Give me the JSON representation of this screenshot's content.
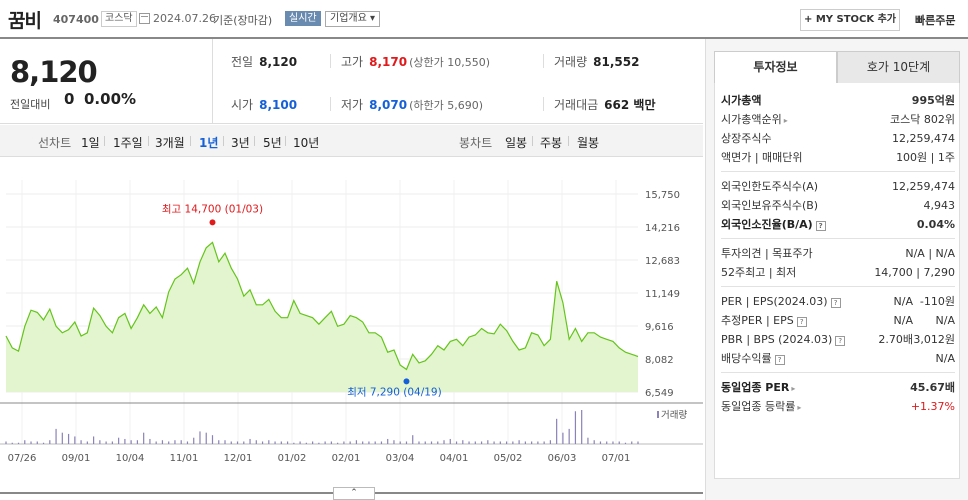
{
  "header": {
    "name": "꿈비",
    "code": "407400",
    "market": "코스닥",
    "date": "2024.07.26",
    "base": "기준(장마감)",
    "realtime": "실시간",
    "company_info": "기업개요 ▾",
    "mystock": "+ MY STOCK 추가",
    "quick_order": "빠른주문"
  },
  "summary": {
    "price": "8,120",
    "change_label": "전일대비",
    "change_value": "0",
    "change_pct": "0.00%",
    "prev_label": "전일",
    "prev": "8,120",
    "high_label": "고가",
    "high": "8,170",
    "upper_limit": "(상한가 10,550)",
    "volume_label": "거래량",
    "volume": "81,552",
    "open_label": "시가",
    "open": "8,100",
    "low_label": "저가",
    "low": "8,070",
    "lower_limit": "(하한가 5,690)",
    "amount_label": "거래대금",
    "amount": "662 백만"
  },
  "tabs": {
    "line_label": "선차트",
    "line": [
      "1일",
      "1주일",
      "3개월",
      "1년",
      "3년",
      "5년",
      "10년"
    ],
    "active": "1년",
    "candle_label": "봉차트",
    "candle": [
      "일봉",
      "주봉",
      "월봉"
    ]
  },
  "chart_data": {
    "type": "area",
    "x_ticks": [
      "07/26",
      "09/01",
      "10/04",
      "11/01",
      "12/01",
      "01/02",
      "02/01",
      "03/04",
      "04/01",
      "05/02",
      "06/03",
      "07/01"
    ],
    "y_ticks": [
      15750,
      14216,
      12683,
      11149,
      9616,
      8082,
      6549
    ],
    "ylim": [
      6549,
      15750
    ],
    "values": [
      9150,
      8600,
      8450,
      9600,
      10350,
      10250,
      9900,
      10400,
      9600,
      9300,
      9450,
      9800,
      9150,
      9300,
      10450,
      10100,
      9600,
      9300,
      10000,
      10200,
      9500,
      10000,
      10600,
      10200,
      10500,
      10000,
      11200,
      11800,
      12000,
      12300,
      11600,
      12600,
      13250,
      13500,
      12600,
      13000,
      12300,
      11800,
      11000,
      11300,
      10600,
      10600,
      10850,
      10300,
      10000,
      10000,
      10800,
      10200,
      10100,
      10000,
      9700,
      10000,
      10300,
      9600,
      9700,
      10100,
      10000,
      9800,
      9300,
      9300,
      9100,
      8400,
      8500,
      7800,
      7600,
      8300,
      7900,
      8000,
      8300,
      8700,
      8500,
      8900,
      9000,
      8700,
      9100,
      9200,
      9500,
      9300,
      9250,
      9700,
      9400,
      8900,
      8500,
      8600,
      9300,
      9200,
      8700,
      9000,
      11700,
      10700,
      9000,
      9500,
      8900,
      9300,
      9300,
      9100,
      9000,
      8900,
      8600,
      8400,
      8300,
      8200
    ],
    "max_label": "최고 14,700 (01/03)",
    "min_label": "최저 7,290 (04/19)",
    "volume_label": "거래량",
    "volume": [
      2,
      1,
      1,
      3,
      2,
      2,
      1,
      3,
      12,
      9,
      8,
      6,
      3,
      2,
      6,
      3,
      2,
      2,
      5,
      4,
      3,
      3,
      9,
      4,
      2,
      3,
      2,
      3,
      3,
      2,
      5,
      10,
      9,
      7,
      3,
      3,
      2,
      2,
      2,
      4,
      3,
      2,
      3,
      2,
      2,
      2,
      1,
      2,
      1,
      2,
      1,
      2,
      2,
      1,
      2,
      2,
      3,
      2,
      2,
      2,
      2,
      4,
      3,
      2,
      2,
      7,
      2,
      2,
      2,
      2,
      3,
      4,
      2,
      3,
      2,
      2,
      2,
      3,
      2,
      2,
      2,
      2,
      3,
      2,
      2,
      2,
      2,
      3,
      20,
      9,
      12,
      26,
      27,
      5,
      3,
      2,
      2,
      2,
      2,
      1,
      2,
      2
    ],
    "line_color": "#64c41a",
    "fill_color": "#e3f5cf",
    "max_color": "#e0191b",
    "min_color": "#1560d8"
  },
  "collapse": "⌃",
  "panel": {
    "tabs": [
      "투자정보",
      "호가 10단계"
    ],
    "rows1": [
      {
        "k": "시가총액",
        "v": "995억원",
        "bold": true
      },
      {
        "k": "시가총액순위",
        "v": "코스닥 802위",
        "arrow": true
      },
      {
        "k": "상장주식수",
        "v": "12,259,474"
      },
      {
        "k": "액면가 | 매매단위",
        "v": "100원 | 1주"
      }
    ],
    "rows2": [
      {
        "k": "외국인한도주식수(A)",
        "v": "12,259,474"
      },
      {
        "k": "외국인보유주식수(B)",
        "v": "4,943"
      },
      {
        "k": "외국인소진율(B/A)",
        "v": "0.04%",
        "bold": true,
        "q": true
      }
    ],
    "rows3": [
      {
        "k": "투자의견 | 목표주가",
        "v": "N/A | N/A"
      },
      {
        "k": "52주최고 | 최저",
        "v": "14,700 | 7,290"
      }
    ],
    "rows4": [
      {
        "k": "PER | EPS(2024.03)",
        "m": "N/A",
        "v": "-110원",
        "q": true
      },
      {
        "k": "추정PER | EPS",
        "m": "N/A",
        "v": "N/A",
        "q": true
      },
      {
        "k": "PBR | BPS (2024.03)",
        "m": "2.70배",
        "v": "3,012원",
        "q": true
      },
      {
        "k": "배당수익률",
        "v": "N/A",
        "q": true
      }
    ],
    "rows5": [
      {
        "k": "동일업종 PER",
        "v": "45.67배",
        "bold": true,
        "arrow": true
      },
      {
        "k": "동일업종 등락률",
        "v": "+1.37%",
        "arrow": true,
        "up": true
      }
    ]
  }
}
